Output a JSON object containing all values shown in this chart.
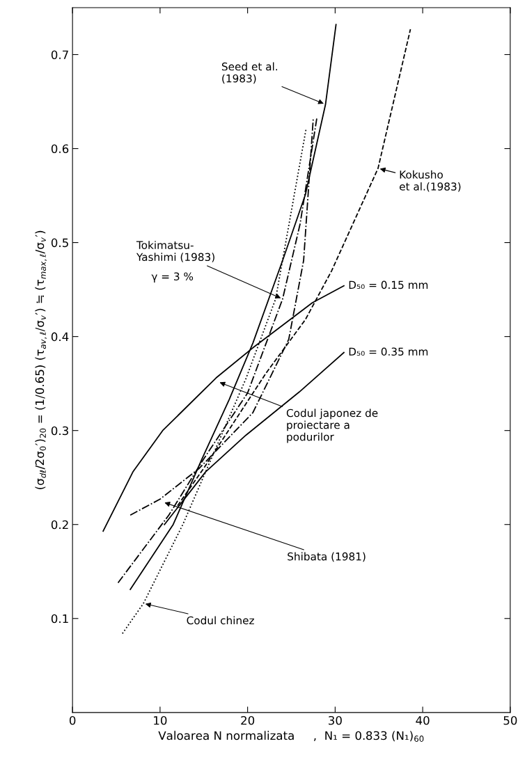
{
  "chart_data": {
    "type": "line",
    "xlabel": "Valoarea N normalizata     ,  N₁ = 0.833 (N₁)$_{60}$",
    "ylabel": "(σ$_{dℓ}$/2σ$_{0}$′)$_{20}$ = (1/0.65) (τ$_{av,ℓ}$/σ$_{v}$′) ≒ (τ$_{max,ℓ}$/σ$_{v}$′)",
    "xlim": [
      0,
      50
    ],
    "ylim": [
      0,
      0.75
    ],
    "xticks": [
      0,
      10,
      20,
      30,
      40,
      50
    ],
    "yticks": [
      0.1,
      0.2,
      0.3,
      0.4,
      0.5,
      0.6,
      0.7
    ],
    "grid": false,
    "marker": "none",
    "series": [
      {
        "color": "#000000",
        "line_style": "solid",
        "x": [
          6.6,
          11.5,
          14.8,
          17.9,
          20.6,
          24,
          26.6,
          28.9,
          30.1
        ],
        "values": [
          0.131,
          0.2,
          0.27,
          0.333,
          0.393,
          0.481,
          0.551,
          0.647,
          0.732
        ]
      },
      {
        "color": "#000000",
        "line_style": "dashdot",
        "x": [
          5.2,
          11,
          15,
          20,
          24,
          26,
          27.9
        ],
        "values": [
          0.138,
          0.21,
          0.27,
          0.34,
          0.44,
          0.52,
          0.632
        ]
      },
      {
        "color": "#000000",
        "line_style": "dashed",
        "x": [
          12,
          15,
          22.1,
          26.6,
          29.6,
          34.9,
          38.6
        ],
        "values": [
          0.22,
          0.26,
          0.361,
          0.418,
          0.47,
          0.579,
          0.727
        ]
      },
      {
        "color": "#000000",
        "line_style": "dotted",
        "x": [
          5.7,
          8.1,
          12.6,
          19.8,
          23.2,
          26.7
        ],
        "values": [
          0.084,
          0.116,
          0.2,
          0.355,
          0.44,
          0.622
        ]
      },
      {
        "color": "#000000",
        "line_style": "dashdot",
        "x": [
          6.6,
          10,
          14.5,
          20.6,
          24.7,
          26.4,
          27.5
        ],
        "values": [
          0.21,
          0.227,
          0.26,
          0.319,
          0.397,
          0.481,
          0.632
        ]
      },
      {
        "name": "D₅₀ = 0.15 mm",
        "color": "#000000",
        "line_style": "solid",
        "x": [
          3.5,
          6.9,
          10.3,
          16.4,
          20.6,
          27.4,
          31.0
        ],
        "values": [
          0.193,
          0.256,
          0.3,
          0.356,
          0.388,
          0.436,
          0.454
        ]
      },
      {
        "name": "D₅₀ = 0.35 mm",
        "color": "#000000",
        "line_style": "solid",
        "x": [
          10.5,
          15.2,
          19.8,
          25.9,
          31.0
        ],
        "values": [
          0.2,
          0.256,
          0.295,
          0.341,
          0.383
        ]
      }
    ],
    "annotations": [
      {
        "text": "Seed et al.\n(1983)",
        "x": 28.9,
        "y": 0.647
      },
      {
        "text": "Kokusho\net al.(1983)",
        "x": 34.9,
        "y": 0.579
      },
      {
        "text": "Tokimatsu-\nYashimi (1983)",
        "x": 24,
        "y": 0.44
      },
      "γ = 3 %",
      {
        "text": "Codul japonez de\nproiectare a\npodurilor",
        "x": 16.6,
        "y": 0.352
      },
      {
        "text": "Shibata (1981)",
        "x": 10.3,
        "y": 0.224
      },
      {
        "text": "Codul chinez",
        "x": 8.1,
        "y": 0.116
      }
    ]
  }
}
